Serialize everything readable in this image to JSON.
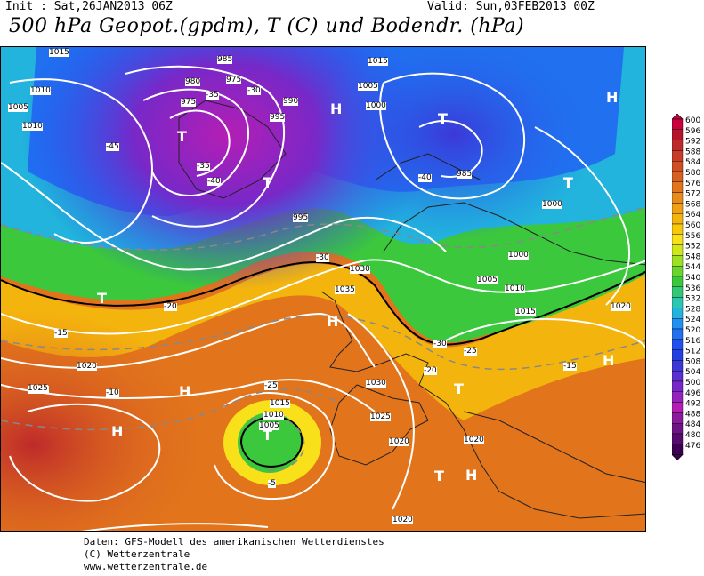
{
  "header": {
    "init": "Init : Sat,26JAN2013 06Z",
    "valid": "Valid: Sun,03FEB2013 00Z",
    "title": "500 hPa Geopot.(gpdm), T (C) und Bodendr. (hPa)"
  },
  "legend": {
    "levels": [
      "600",
      "596",
      "592",
      "588",
      "584",
      "580",
      "576",
      "572",
      "568",
      "564",
      "560",
      "556",
      "552",
      "548",
      "544",
      "540",
      "536",
      "532",
      "528",
      "524",
      "520",
      "516",
      "512",
      "508",
      "504",
      "500",
      "496",
      "492",
      "488",
      "484",
      "480",
      "476"
    ],
    "colors": [
      "#c8003c",
      "#b4142a",
      "#be2a2a",
      "#c83c28",
      "#d04e24",
      "#d86020",
      "#e2741c",
      "#ea8a1a",
      "#f0a012",
      "#f4b40e",
      "#f8c80a",
      "#f8e01a",
      "#d0e81a",
      "#9ee024",
      "#6cd42e",
      "#3cc83c",
      "#32c878",
      "#2ac8b0",
      "#22b4dc",
      "#2290f0",
      "#2070f0",
      "#2050f0",
      "#2040e0",
      "#3c38d8",
      "#5a30d0",
      "#7828c8",
      "#9622be",
      "#b41eb4",
      "#8c1a9c",
      "#6e1484",
      "#560c6c",
      "#3c0050"
    ]
  },
  "map": {
    "pressure_labels": [
      "1015",
      "985",
      "975",
      "980",
      "975",
      "990",
      "995",
      "1010",
      "1005",
      "1010",
      "1000",
      "1005",
      "1015",
      "1020",
      "1025",
      "1030",
      "1035",
      "1030",
      "1020",
      "1015",
      "1010",
      "1005",
      "1000",
      "985",
      "995",
      "1025",
      "1020",
      "1025",
      "1020",
      "1015",
      "1010",
      "1005",
      "1000",
      "1020"
    ],
    "temp_labels": [
      "-35",
      "-30",
      "-45",
      "-40",
      "-35",
      "-40",
      "-30",
      "-25",
      "-20",
      "-15",
      "-10",
      "-5",
      "-25",
      "-30",
      "-20",
      "-15"
    ],
    "high_symbol": "H",
    "low_symbol": "T"
  },
  "footer": {
    "line1": "Daten: GFS-Modell des amerikanischen Wetterdienstes",
    "line2": "(C) Wetterzentrale",
    "line3": "www.wetterzentrale.de"
  }
}
